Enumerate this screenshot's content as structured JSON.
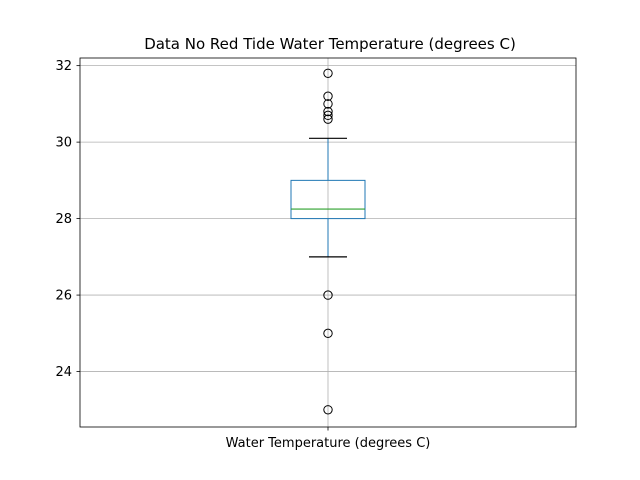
{
  "chart_data": {
    "type": "box",
    "title": "Data No Red Tide Water Temperature (degrees C)",
    "xlabel": "",
    "ylabel": "",
    "categories": [
      "Water Temperature (degrees C)"
    ],
    "ylim": [
      22.55,
      32.2
    ],
    "yticks": [
      24,
      26,
      28,
      30,
      32
    ],
    "grid": true,
    "box": {
      "whisker_low": 27.0,
      "q1": 28.0,
      "median": 28.25,
      "q3": 29.0,
      "whisker_high": 30.1
    },
    "outliers": [
      31.8,
      31.2,
      31.0,
      30.8,
      30.7,
      30.6,
      26.0,
      25.0,
      23.0
    ],
    "colors": {
      "box": "#1f77b4",
      "median": "#2ca02c",
      "whisker_cap": "#000000",
      "grid": "#b0b0b0"
    }
  }
}
